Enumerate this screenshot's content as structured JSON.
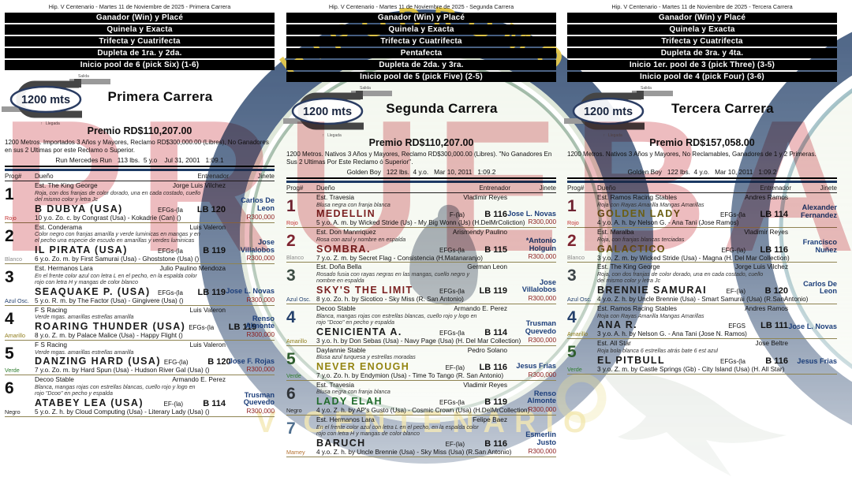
{
  "watermark": "PRUEBA",
  "logo": {
    "top_text": "HIPODROMO",
    "bottom_text": "V CENTENARIO"
  },
  "track_label": "1200 mts",
  "salida_label": "Salida",
  "llegada_label": "Llegada",
  "llegada_arrow": "↑",
  "table_headers": {
    "prog": "Prog#",
    "owner": "Dueño",
    "trainer": "Entrenador",
    "jockey": "Jinete"
  },
  "columns": [
    {
      "header": "Hip. V Centenario - Martes 11 de Noviembre de 2025 - Primera Carrera",
      "bet_bars": [
        "Ganador (Win) y Placé",
        "Quinela y Exacta",
        "Trifecta y Cuatrifecta",
        "Dupleta de 1ra. y 2da.",
        "Inicio pool de 6 (pick Six) (1-6)"
      ],
      "race_title": "Primera Carrera",
      "premio": "Premio RD$110,207.00",
      "conditions": "1200 Metros. Importados 3 Años y Mayores, Reclamo RD$300,000.00 (Libres), No Ganadores en sus 2 Ultimas por este Reclamo o Superior.",
      "record": "Run Mercedes Run   113 lbs.  5 y.o    Jul 31, 2001   1:09.1",
      "horses": [
        {
          "prog": "1",
          "color_label": "Rojo",
          "label_color": "#c43030",
          "num_color": "#111111",
          "owner": "Est. The King George",
          "trainer": "Jorge Luis Vilchez",
          "desc": "Roja, con dos franjas de color dorado, una en cada costado, cuello del mismo color y letra Jc",
          "name": "B DUBYA (USA)",
          "name_color": "#1a1a1a",
          "equip": "EFGs-(la",
          "weight": "LB 120",
          "jockey": "Carlos De Leon",
          "pedigree": "10 y.o. Zo. c. by Congrast (Usa) - Kokadrie (Can) ()",
          "claim": "R300,000"
        },
        {
          "prog": "2",
          "color_label": "Blanco",
          "label_color": "#8a8a8a",
          "num_color": "#111111",
          "owner": "Est. Conderama",
          "trainer": "Luis Valeron",
          "desc": "Color negro con franjas amarilla y verde luminicas en mangas y en el pecho una especie de escudo en amarillas y verdes luminicas",
          "name": "IL PIRATA (USA)",
          "name_color": "#1a1a1a",
          "equip": "EFGs-(la",
          "weight": "B 119",
          "jockey": "Jose Villalobos",
          "pedigree": "6 y.o. Zo. m. by First Samurai (Usa) - Ghoststone (Usa) ()",
          "claim": "R300,000"
        },
        {
          "prog": "3",
          "color_label": "Azul Osc.",
          "label_color": "#23406e",
          "num_color": "#111111",
          "owner": "Est. Hermanos Lara",
          "trainer": "Julio Paulino Mendoza",
          "desc": "En el frente color azul con letra L en el pecho, en la espalda color rojo con letra H y mangas de color blanco",
          "name": "SEAQUAKE P. (USA)",
          "name_color": "#1a1a1a",
          "equip": "EFGs-(la",
          "weight": "LB 119",
          "jockey": "Jose L. Novas",
          "pedigree": "5 y.o. R. m. by The Factor (Usa) - Gingivere (Usa) ()",
          "claim": "R300,000"
        },
        {
          "prog": "4",
          "color_label": "Amarillo",
          "label_color": "#8f7c1a",
          "num_color": "#111111",
          "owner": "F S Racing",
          "trainer": "Luis Valeron",
          "desc": "Verde mgas. amarillas estrellas amarilla",
          "name": "ROARING THUNDER (USA)",
          "name_color": "#1a1a1a",
          "equip": "EFGs-(la",
          "weight": "LB 119",
          "jockey": "Renso Almonte",
          "pedigree": "8 y.o. Z. m. by Palace Malice (Usa) - Happy Flight ()",
          "claim": "R300,000"
        },
        {
          "prog": "5",
          "color_label": "Verde",
          "label_color": "#2f7e2f",
          "num_color": "#111111",
          "owner": "F S Racing",
          "trainer": "Luis Valeron",
          "desc": "Verde mgas. amarillas estrellas amarilla",
          "name": "DANZING HARD (USA)",
          "name_color": "#1a1a1a",
          "equip": "EFG-(la)",
          "weight": "B 120",
          "jockey": "Jose F. Rojas",
          "pedigree": "7 y.o. Zo. m. by Hard Spun (Usa) - Hudson River Gal (Usa) ()",
          "claim": "R300,000"
        },
        {
          "prog": "6",
          "color_label": "Negro",
          "label_color": "#222222",
          "num_color": "#111111",
          "owner": "Decoo Stable",
          "trainer": "Armando E. Perez",
          "desc": "Blanca, mangas rojas con estrellas blancas, cuello rojo y logo en rojo \"Dcoo\" en pecho y espalda",
          "name": "ATABEY LEA (USA)",
          "name_color": "#1a1a1a",
          "equip": "EF-(la)",
          "weight": "B 114",
          "jockey": "Trusman Quevedo",
          "pedigree": "5 y.o. Z. h. by Cloud Computing (Usa) - Literary Lady (Usa) ()",
          "claim": "R300,000"
        }
      ]
    },
    {
      "header": "Hip. V Centenario - Martes 11 de Noviembre de 2025 - Segunda Carrera",
      "bet_bars": [
        "Ganador (Win) y Placé",
        "Quinela y Exacta",
        "Trifecta y Cuatrifecta",
        "Pentafecta",
        "Dupleta de 2da. y 3ra.",
        "Inicio pool de 5 (pick Five) (2-5)"
      ],
      "race_title": "Segunda Carrera",
      "premio": "Premio RD$110,207.00",
      "conditions": "1200 Metros. Nativos 3 Años y Mayores, Reclamo RD$300,000.00 (Libres). \"No Ganadores En Sus 2 Ultimas Por Este Reclamo ó Superior''.",
      "record": "Golden Boy   122 lbs.  4 y.o.   Mar 10, 2011   1:09.2",
      "horses": [
        {
          "prog": "1",
          "color_label": "Rojo",
          "label_color": "#c43030",
          "num_color": "#6e2230",
          "owner": "Est. Travesia",
          "trainer": "Vladimir Reyes",
          "desc": "Blusa negra con franja blanca",
          "name": "MEDELLIN",
          "name_color": "#7a2020",
          "equip": "F-(la)",
          "weight": "B 116",
          "jockey": "Jose L. Novas",
          "pedigree": "5 y.o. A. m. by Wicked Stride (Us) - My Big Wonn (Us) (H.DelMrColiction)",
          "claim": "R300,000"
        },
        {
          "prog": "2",
          "color_label": "Blanco",
          "label_color": "#8a8a8a",
          "num_color": "#7e2430",
          "owner": "Est. Don Manrriquez",
          "trainer": "Arismendy Paulino",
          "desc": "Rosa con azul y nombre en espalda",
          "name": "SOMBRA.",
          "name_color": "#7a2020",
          "equip": "EFGs-(la",
          "weight": "B 115",
          "jockey": "*Antonio Holguin",
          "pedigree": "7 y.o. Z. m. by Secret Flag - Consistencia (H.Matanaranjo)",
          "claim": "R300,000"
        },
        {
          "prog": "3",
          "color_label": "Azul Osc.",
          "label_color": "#23406e",
          "num_color": "#3c4c44",
          "owner": "Est. Doña Bella",
          "trainer": "German Leon",
          "desc": "Rosado fusia con rayas negras en las mangas, cuello negro y nombre en espalda",
          "name": "SKY'S THE LIMIT",
          "name_color": "#7a2020",
          "equip": "EFGs-(la",
          "weight": "LB 119",
          "jockey": "Jose Villalobos",
          "pedigree": "8 y.o. Zo. h. by Sicotico - Sky Miss (R. San Antonio)",
          "claim": "R300,000"
        },
        {
          "prog": "4",
          "color_label": "Amarillo",
          "label_color": "#8f7c1a",
          "num_color": "#24406b",
          "owner": "Decoo Stable",
          "trainer": "Armando E. Perez",
          "desc": "Blanca, mangas rojas con estrellas blancas, cuello rojo y logo en rojo \"Dcoo\" en pecho y espalda",
          "name": "CENICIENTA A.",
          "name_color": "#1a1a1a",
          "equip": "EFGs-(la",
          "weight": "B 114",
          "jockey": "Trusman Quevedo",
          "pedigree": "3 y.o. h. by Don Sebas (Usa) - Navy Page (Usa) (H. Del Mar Collection)",
          "claim": "R300,000"
        },
        {
          "prog": "5",
          "color_label": "Verde",
          "label_color": "#2f7e2f",
          "num_color": "#2f5e2f",
          "owner": "Daylannie Stable",
          "trainer": "Pedro Solano",
          "desc": "Blusa azul turquesa y estrellas moradas",
          "name": "NEVER ENOUGH",
          "name_color": "#938410",
          "equip": "EF-(la)",
          "weight": "LB 116",
          "jockey": "Jesus Frias",
          "pedigree": "7 y.o. Zo. h. by Endymion (Usa) - Time To Tango (R. San Antonio)",
          "claim": "R300,000"
        },
        {
          "prog": "6",
          "color_label": "Negro",
          "label_color": "#222222",
          "num_color": "#2f3338",
          "owner": "Est. Travesia",
          "trainer": "Vladimir Reyes",
          "desc": "Blusa negra con franja blanca",
          "name": "LADY ELAH",
          "name_color": "#1f6a2a",
          "equip": "EFGs-(la",
          "weight": "B 119",
          "jockey": "Renso Almonte",
          "pedigree": "4 y.o. Z. h. by AP's Gusto (Usa) - Cosmic Crown (Usa) (H.DelMrCollection)",
          "claim": "R300,000"
        },
        {
          "prog": "7",
          "color_label": "Mamey",
          "label_color": "#b5722f",
          "num_color": "#4e6e8e",
          "owner": "Est. Hermanos Lara",
          "trainer": "Felipe Baez",
          "desc": "En el frente color azul con letra L en el pecho, en la espalda color rojo con letra H y mangas de color blanco",
          "name": "BARUCH",
          "name_color": "#1a1a1a",
          "equip": "EF-(la)",
          "weight": "B 116",
          "jockey": "Esmerlin Justo",
          "pedigree": "4 y.o. Z. h. by Uncle Brennie (Usa) - Sky Miss (Usa) (R.San Antonio)",
          "claim": "R300,000"
        }
      ]
    },
    {
      "header": "Hip. V Centenario - Martes 11 de Noviembre de 2025 - Tercera Carrera",
      "bet_bars": [
        "Ganador (Win) y Placé",
        "Quinela y Exacta",
        "Trifecta y Cuatrifecta",
        "Dupleta de 3ra. y 4ta.",
        "Inicio 1er. pool de 3 (pick Three) (3-5)",
        "Inicio pool de 4 (pick Four) (3-6)"
      ],
      "race_title": "Tercera Carrera",
      "premio": "Premio RD$157,058.00",
      "conditions": "1200 Metros. Nativos 3 Años y Mayores, No Reclamables, Ganadores de 1 y 2 Primeras.",
      "record": "Golden Boy   122 lbs.  4 y.o.   Mar 10, 2011   1:09.2",
      "horses": [
        {
          "prog": "1",
          "color_label": "Rojo",
          "label_color": "#c43030",
          "num_color": "#6e2230",
          "owner": "Est. Ramos Racing Stables",
          "trainer": "Andres Ramos",
          "desc": "Roja con Rayas Amarilla Mangas Amarillas",
          "name": "GOLDEN LADY",
          "name_color": "#6b5f14",
          "equip": "EFGs-(la",
          "weight": "LB 114",
          "jockey": "Alexander Fernandez",
          "pedigree": "4 y.o. A. h. by Nelson G. - Ana Tani (Jose Ramos)",
          "claim": ""
        },
        {
          "prog": "2",
          "color_label": "Blanco",
          "label_color": "#8a8a8a",
          "num_color": "#7e2430",
          "owner": "Est. Maralba",
          "trainer": "Vladimir Reyes",
          "desc": "Roja, con franjas blancas terciadas",
          "name": "GALACTICO",
          "name_color": "#6b5f14",
          "equip": "EFG-(la)",
          "weight": "LB 116",
          "jockey": "Francisco Nuñez",
          "pedigree": "3 y.o. Z. m. by Wicked Stride (Usa) - Magna (H. Del Mar Collection)",
          "claim": ""
        },
        {
          "prog": "3",
          "color_label": "Azul Osc.",
          "label_color": "#23406e",
          "num_color": "#3c4448",
          "owner": "Est. The King George",
          "trainer": "Jorge Luis Vilchez",
          "desc": "Roja, con dos franjas de color dorado, una en cada costado, cuello del mismo color y letra Jc",
          "name": "BRENNIE SAMURAI",
          "name_color": "#1a1a1a",
          "equip": "EF-(la)",
          "weight": "B 120",
          "jockey": "Carlos De Leon",
          "pedigree": "4 y.o. Z. h. by Uncle Brennie (Usa) - Smart Samurai (Usa) (R.SanAntonio)",
          "claim": ""
        },
        {
          "prog": "4",
          "color_label": "Amarillo",
          "label_color": "#8f7c1a",
          "num_color": "#24406b",
          "owner": "Est. Ramos Racing Stables",
          "trainer": "Andres Ramos",
          "desc": "Roja con Rayas Amarilla Mangas Amarillas",
          "name": "ANA R.",
          "name_color": "#1a1a1a",
          "equip": "EFGS",
          "weight": "LB 111",
          "jockey": "Jose L. Novas",
          "pedigree": "3 y.o. A. h. by Nelson G. - Ana Tani (Jose N. Ramos)",
          "claim": ""
        },
        {
          "prog": "5",
          "color_label": "Verde",
          "label_color": "#2f7e2f",
          "num_color": "#2f5e2f",
          "owner": "Est. All Star",
          "trainer": "Jose Beltre",
          "desc": "Roja bola blanca  6 estrellas atrás bate  6 est azul",
          "name": "EL PITBULL",
          "name_color": "#1a1a1a",
          "equip": "EFGs-(la",
          "weight": "B 116",
          "jockey": "Jesus Frias",
          "pedigree": "3 y.o. Z. m. by Castle Springs (Gb) - City Island (Usa) (H. All Star)",
          "claim": ""
        }
      ]
    }
  ]
}
